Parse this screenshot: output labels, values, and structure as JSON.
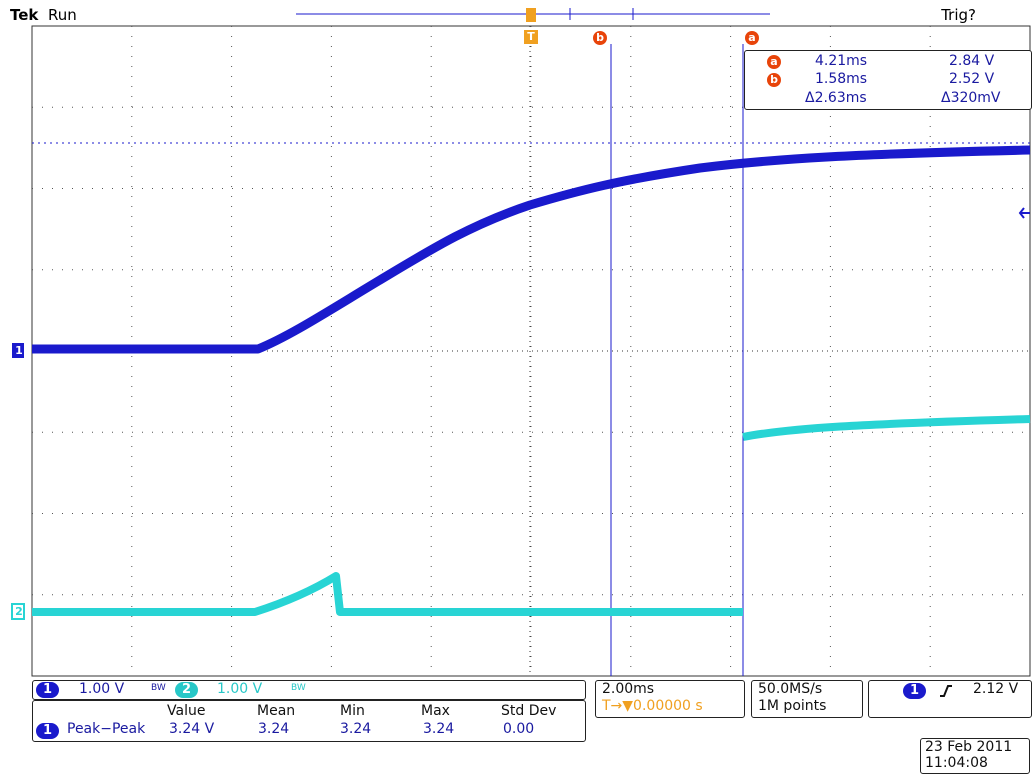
{
  "header": {
    "brand": "Tek",
    "run_state": "Run",
    "trigger_state": "Trig?"
  },
  "cursor_readout": {
    "a_badge": "a",
    "a_time": "4.21ms",
    "a_volt": "2.84 V",
    "b_badge": "b",
    "b_time": "1.58ms",
    "b_volt": "2.52 V",
    "delta_time": "Δ2.63ms",
    "delta_volt": "Δ320mV"
  },
  "markers": {
    "trigger": "T",
    "cursor_a": "a",
    "cursor_b": "b",
    "ch1_marker": "1",
    "ch2_marker": "2"
  },
  "channels": {
    "ch1_label": "1",
    "ch1_scale": "1.00 V",
    "ch1_bw": "BW",
    "ch2_label": "2",
    "ch2_scale": "1.00 V",
    "ch2_bw": "BW"
  },
  "measurements": {
    "headers": [
      "Value",
      "Mean",
      "Min",
      "Max",
      "Std Dev"
    ],
    "row_channel": "1",
    "row_name": "Peak−Peak",
    "row_values": [
      "3.24 V",
      "3.24",
      "3.24",
      "3.24",
      "0.00"
    ]
  },
  "timebase": {
    "scale": "2.00ms",
    "trigger_pos": "T→▼0.00000 s"
  },
  "acquisition": {
    "rate": "50.0MS/s",
    "points": "1M points"
  },
  "trigger": {
    "channel": "1",
    "slope_icon": "rising-edge",
    "level": "2.12 V"
  },
  "timestamp": {
    "date": "23 Feb  2011",
    "time": "11:04:08"
  },
  "colors": {
    "ch1": "#1a1acc",
    "ch2": "#28d4d4",
    "cursor": "#1a1acc",
    "trigger": "#f0a020",
    "grid": "#444444"
  }
}
